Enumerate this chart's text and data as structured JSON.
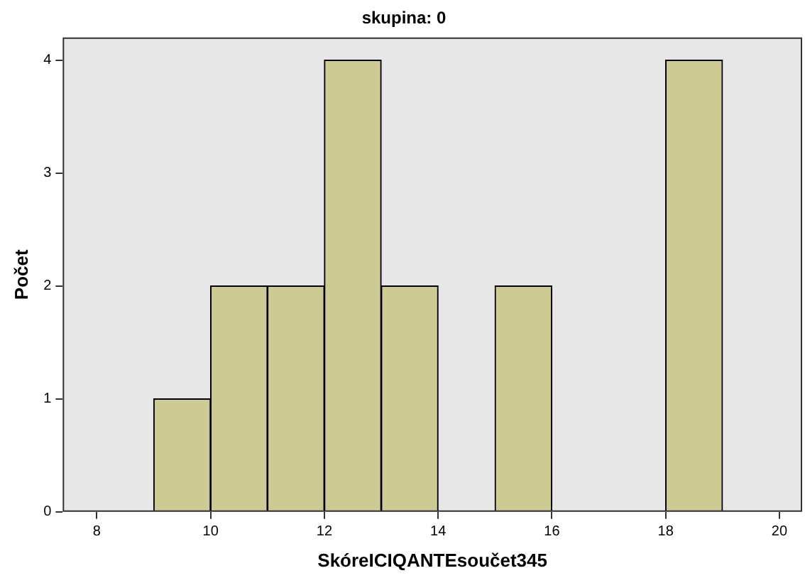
{
  "chart_data": {
    "type": "histogram",
    "title": "skupina: 0",
    "xlabel": "SkóreICIQANTEsoučet345",
    "ylabel": "Počet",
    "bins": [
      9,
      10,
      11,
      12,
      13,
      14,
      15,
      16,
      17,
      18,
      19
    ],
    "values": [
      1,
      2,
      2,
      4,
      2,
      0,
      2,
      0,
      0,
      4
    ],
    "color": "#cdca94",
    "xlim": [
      7.4,
      20.4
    ],
    "xticks": [
      8,
      10,
      12,
      14,
      16,
      18,
      20
    ],
    "ylim": [
      0,
      4.2
    ],
    "yticks": [
      0,
      1,
      2,
      3,
      4
    ],
    "grid": false,
    "legend": false
  }
}
